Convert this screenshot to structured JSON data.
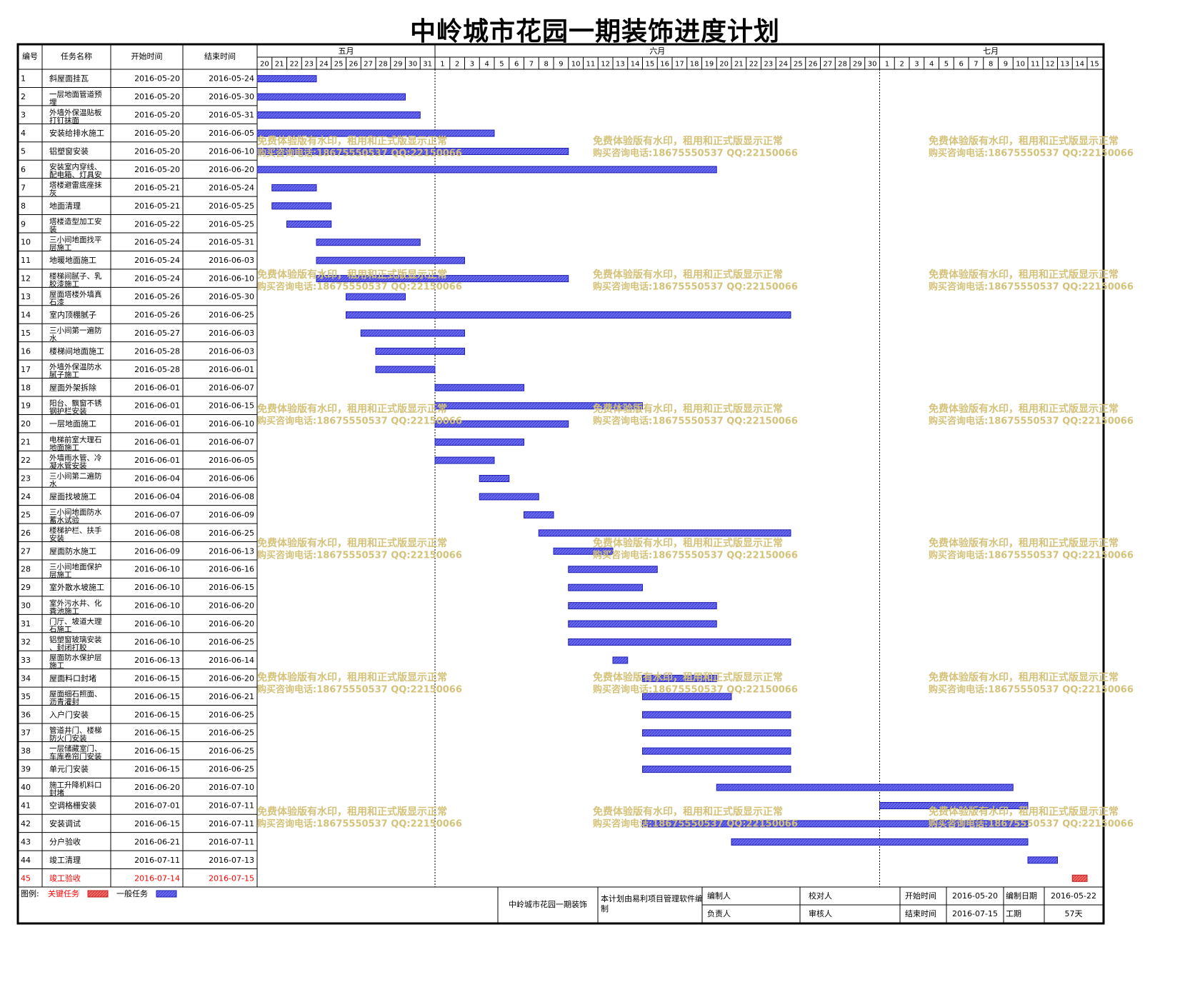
{
  "title": "中岭城市花园一期装饰进度计划",
  "headers": {
    "id": "编号",
    "name": "任务名称",
    "start": "开始时间",
    "end": "结束时间"
  },
  "colors": {
    "normal_bar": "#6b6bf0",
    "critical_bar": "#f06b6b",
    "critical_text": "#ff0000",
    "grid": "#000000",
    "watermark": "#d4c27a"
  },
  "chart_data": {
    "type": "gantt",
    "months": [
      {
        "label": "五月",
        "days": [
          "20",
          "21",
          "22",
          "23",
          "24",
          "25",
          "26",
          "27",
          "28",
          "29",
          "30",
          "31"
        ]
      },
      {
        "label": "六月",
        "days": [
          "1",
          "2",
          "3",
          "4",
          "5",
          "6",
          "7",
          "8",
          "9",
          "10",
          "11",
          "12",
          "13",
          "14",
          "15",
          "16",
          "17",
          "18",
          "19",
          "20",
          "21",
          "22",
          "23",
          "24",
          "25",
          "26",
          "27",
          "28",
          "29",
          "30"
        ]
      },
      {
        "label": "七月",
        "days": [
          "1",
          "2",
          "3",
          "4",
          "5",
          "6",
          "7",
          "8",
          "9",
          "10",
          "11",
          "12",
          "13",
          "14",
          "15"
        ]
      }
    ],
    "tasks": [
      {
        "id": "1",
        "name": "斜屋面挂瓦",
        "start": "2016-05-20",
        "end": "2016-05-24",
        "critical": false
      },
      {
        "id": "2",
        "name": "一层地面管道预埋",
        "start": "2016-05-20",
        "end": "2016-05-30",
        "critical": false
      },
      {
        "id": "3",
        "name": "外墙外保温贴板打钉抹面",
        "start": "2016-05-20",
        "end": "2016-05-31",
        "critical": false
      },
      {
        "id": "4",
        "name": "安装给排水施工",
        "start": "2016-05-20",
        "end": "2016-06-05",
        "critical": false
      },
      {
        "id": "5",
        "name": "铝塑窗安装",
        "start": "2016-05-20",
        "end": "2016-06-10",
        "critical": false
      },
      {
        "id": "6",
        "name": "安装室内穿线、配电箱、灯具安装",
        "start": "2016-05-20",
        "end": "2016-06-20",
        "critical": false
      },
      {
        "id": "7",
        "name": "塔楼避雷底座抹灰",
        "start": "2016-05-21",
        "end": "2016-05-24",
        "critical": false
      },
      {
        "id": "8",
        "name": "地面清理",
        "start": "2016-05-21",
        "end": "2016-05-25",
        "critical": false
      },
      {
        "id": "9",
        "name": "塔楼造型加工安装",
        "start": "2016-05-22",
        "end": "2016-05-25",
        "critical": false
      },
      {
        "id": "10",
        "name": "三小间地面找平层施工",
        "start": "2016-05-24",
        "end": "2016-05-31",
        "critical": false
      },
      {
        "id": "11",
        "name": "地暖地面施工",
        "start": "2016-05-24",
        "end": "2016-06-03",
        "critical": false
      },
      {
        "id": "12",
        "name": "楼梯间腻子、乳胶漆施工",
        "start": "2016-05-24",
        "end": "2016-06-10",
        "critical": false
      },
      {
        "id": "13",
        "name": "屋面塔楼外墙真石漆",
        "start": "2016-05-26",
        "end": "2016-05-30",
        "critical": false
      },
      {
        "id": "14",
        "name": "室内顶棚腻子",
        "start": "2016-05-26",
        "end": "2016-06-25",
        "critical": false
      },
      {
        "id": "15",
        "name": "三小间第一遍防水",
        "start": "2016-05-27",
        "end": "2016-06-03",
        "critical": false
      },
      {
        "id": "16",
        "name": "楼梯间地面施工",
        "start": "2016-05-28",
        "end": "2016-06-03",
        "critical": false
      },
      {
        "id": "17",
        "name": "外墙外保温防水腻子施工",
        "start": "2016-05-28",
        "end": "2016-06-01",
        "critical": false
      },
      {
        "id": "18",
        "name": "屋面外架拆除",
        "start": "2016-06-01",
        "end": "2016-06-07",
        "critical": false
      },
      {
        "id": "19",
        "name": "阳台、飘窗不锈钢护栏安装",
        "start": "2016-06-01",
        "end": "2016-06-15",
        "critical": false
      },
      {
        "id": "20",
        "name": "一层地面施工",
        "start": "2016-06-01",
        "end": "2016-06-10",
        "critical": false
      },
      {
        "id": "21",
        "name": "电梯前室大理石地面施工",
        "start": "2016-06-01",
        "end": "2016-06-07",
        "critical": false
      },
      {
        "id": "22",
        "name": "外墙雨水管、冷凝水管安装",
        "start": "2016-06-01",
        "end": "2016-06-05",
        "critical": false
      },
      {
        "id": "23",
        "name": "三小间第二遍防水",
        "start": "2016-06-04",
        "end": "2016-06-06",
        "critical": false
      },
      {
        "id": "24",
        "name": "屋面找坡施工",
        "start": "2016-06-04",
        "end": "2016-06-08",
        "critical": false
      },
      {
        "id": "25",
        "name": "三小间地面防水蓄水试验",
        "start": "2016-06-07",
        "end": "2016-06-09",
        "critical": false
      },
      {
        "id": "26",
        "name": "楼梯护栏、扶手安装",
        "start": "2016-06-08",
        "end": "2016-06-25",
        "critical": false
      },
      {
        "id": "27",
        "name": "屋面防水施工",
        "start": "2016-06-09",
        "end": "2016-06-13",
        "critical": false
      },
      {
        "id": "28",
        "name": "三小间地面保护层施工",
        "start": "2016-06-10",
        "end": "2016-06-16",
        "critical": false
      },
      {
        "id": "29",
        "name": "室外散水坡施工",
        "start": "2016-06-10",
        "end": "2016-06-15",
        "critical": false
      },
      {
        "id": "30",
        "name": "室外污水井、化粪池施工",
        "start": "2016-06-10",
        "end": "2016-06-20",
        "critical": false
      },
      {
        "id": "31",
        "name": "门厅、坡道大理石施工",
        "start": "2016-06-10",
        "end": "2016-06-20",
        "critical": false
      },
      {
        "id": "32",
        "name": "铝塑窗玻璃安装、封闭打胶",
        "start": "2016-06-10",
        "end": "2016-06-25",
        "critical": false
      },
      {
        "id": "33",
        "name": "屋面防水保护层施工",
        "start": "2016-06-13",
        "end": "2016-06-14",
        "critical": false
      },
      {
        "id": "34",
        "name": "屋面料口封堵",
        "start": "2016-06-15",
        "end": "2016-06-20",
        "critical": false
      },
      {
        "id": "35",
        "name": "屋面细石照面、沥青灌封",
        "start": "2016-06-15",
        "end": "2016-06-21",
        "critical": false
      },
      {
        "id": "36",
        "name": "入户门安装",
        "start": "2016-06-15",
        "end": "2016-06-25",
        "critical": false
      },
      {
        "id": "37",
        "name": "管道井门、楼梯防火门安装",
        "start": "2016-06-15",
        "end": "2016-06-25",
        "critical": false
      },
      {
        "id": "38",
        "name": "一层储藏室门、车库卷帘门安装",
        "start": "2016-06-15",
        "end": "2016-06-25",
        "critical": false
      },
      {
        "id": "39",
        "name": "单元门安装",
        "start": "2016-06-15",
        "end": "2016-06-25",
        "critical": false
      },
      {
        "id": "40",
        "name": "施工升降机料口封堵",
        "start": "2016-06-20",
        "end": "2016-07-10",
        "critical": false
      },
      {
        "id": "41",
        "name": "空调格栅安装",
        "start": "2016-07-01",
        "end": "2016-07-11",
        "critical": false
      },
      {
        "id": "42",
        "name": "安装调试",
        "start": "2016-06-15",
        "end": "2016-07-11",
        "critical": false
      },
      {
        "id": "43",
        "name": "分户验收",
        "start": "2016-06-21",
        "end": "2016-07-11",
        "critical": false
      },
      {
        "id": "44",
        "name": "竣工清理",
        "start": "2016-07-11",
        "end": "2016-07-13",
        "critical": false
      },
      {
        "id": "45",
        "name": "竣工验收",
        "start": "2016-07-14",
        "end": "2016-07-15",
        "critical": true
      }
    ]
  },
  "legend": {
    "label": "图例:",
    "critical": "关键任务",
    "normal": "一般任务"
  },
  "footer": {
    "project": "中岭城市花园一期装饰",
    "software": "本计划由易利项目管理软件编制",
    "compiler_label": "编制人",
    "checker_label": "校对人",
    "manager_label": "负责人",
    "reviewer_label": "审核人",
    "start_label": "开始时间",
    "start_value": "2016-05-20",
    "end_label": "结束时间",
    "end_value": "2016-07-15",
    "date_label": "编制日期",
    "date_value": "2016-05-22",
    "duration_label": "工期",
    "duration_value": "57天"
  },
  "watermark": {
    "line1": "免费体验版有水印，租用和正式版显示正常",
    "line2": "购买咨询电话:18675550537 QQ:22150066"
  }
}
